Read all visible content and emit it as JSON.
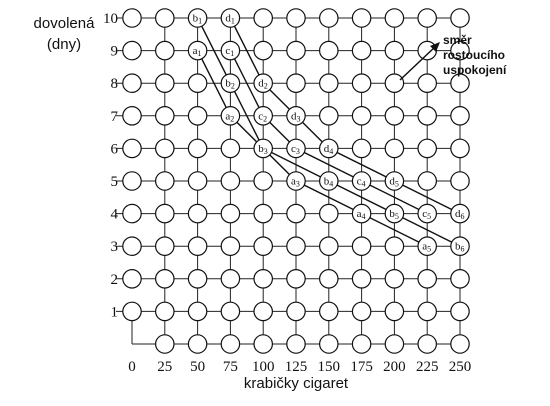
{
  "y_axis_label": [
    "dovolená",
    "(dny)"
  ],
  "x_axis_label": "krabičky cigaret",
  "x_ticks": [
    "0",
    "25",
    "50",
    "75",
    "100",
    "125",
    "150",
    "175",
    "200",
    "225",
    "250"
  ],
  "y_ticks": [
    "1",
    "2",
    "3",
    "4",
    "5",
    "6",
    "7",
    "8",
    "9",
    "10"
  ],
  "direction_annotation": [
    "směr",
    "rostoucího",
    "uspokojení"
  ],
  "indifference_curves": [
    {
      "name": "a",
      "points": [
        {
          "label": "a1",
          "x": 50,
          "y": 9
        },
        {
          "label": "a2",
          "x": 75,
          "y": 7
        },
        {
          "label": "a3",
          "x": 125,
          "y": 5
        },
        {
          "label": "a4",
          "x": 175,
          "y": 4
        },
        {
          "label": "a5",
          "x": 225,
          "y": 3
        }
      ]
    },
    {
      "name": "b",
      "points": [
        {
          "label": "b1",
          "x": 50,
          "y": 10
        },
        {
          "label": "b2",
          "x": 75,
          "y": 8
        },
        {
          "label": "b3",
          "x": 100,
          "y": 6
        },
        {
          "label": "b4",
          "x": 150,
          "y": 5
        },
        {
          "label": "b5",
          "x": 200,
          "y": 4
        },
        {
          "label": "b6",
          "x": 250,
          "y": 3
        }
      ]
    },
    {
      "name": "c",
      "points": [
        {
          "label": "c1",
          "x": 75,
          "y": 9
        },
        {
          "label": "c2",
          "x": 100,
          "y": 7
        },
        {
          "label": "c3",
          "x": 125,
          "y": 6
        },
        {
          "label": "c4",
          "x": 175,
          "y": 5
        },
        {
          "label": "c5",
          "x": 225,
          "y": 4
        }
      ]
    },
    {
      "name": "d",
      "points": [
        {
          "label": "d1",
          "x": 75,
          "y": 10
        },
        {
          "label": "d2",
          "x": 100,
          "y": 8
        },
        {
          "label": "d3",
          "x": 125,
          "y": 7
        },
        {
          "label": "d4",
          "x": 150,
          "y": 6
        },
        {
          "label": "d5",
          "x": 200,
          "y": 5
        },
        {
          "label": "d6",
          "x": 250,
          "y": 4
        }
      ]
    }
  ]
}
